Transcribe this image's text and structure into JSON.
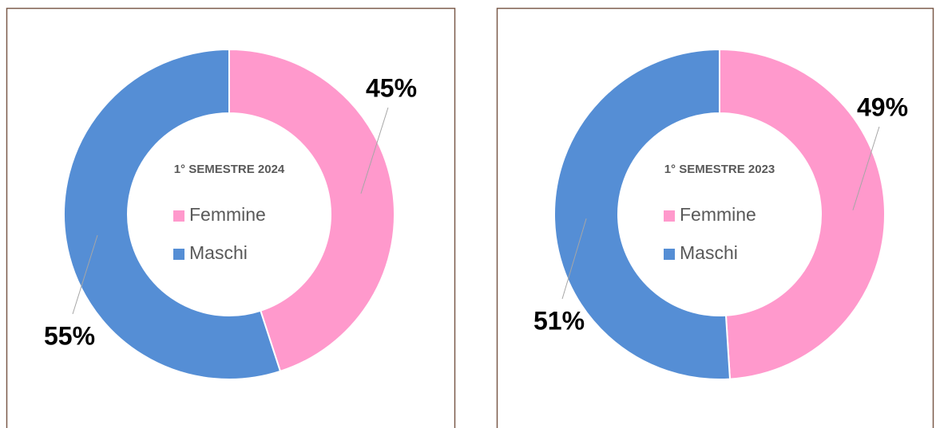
{
  "chart_data": [
    {
      "type": "pie",
      "title": "1° SEMESTRE 2024",
      "categories": [
        "Femmine",
        "Maschi"
      ],
      "values": [
        45,
        55
      ],
      "value_labels": [
        "45%",
        "55%"
      ],
      "colors": [
        "#ff99cc",
        "#558ed5"
      ],
      "donut": true
    },
    {
      "type": "pie",
      "title": "1° SEMESTRE 2023",
      "categories": [
        "Femmine",
        "Maschi"
      ],
      "values": [
        49,
        51
      ],
      "value_labels": [
        "49%",
        "51%"
      ],
      "colors": [
        "#ff99cc",
        "#558ed5"
      ],
      "donut": true
    }
  ]
}
